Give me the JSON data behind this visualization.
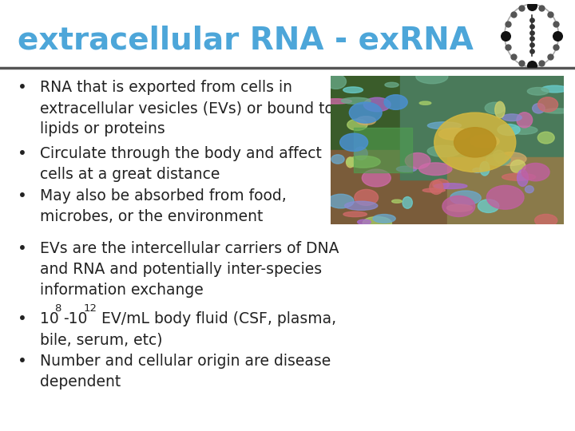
{
  "title_full": "extracellular RNA - exRNA",
  "title_color": "#4DA6D9",
  "bg_color": "#ffffff",
  "line_color": "#555555",
  "text_color": "#222222",
  "bullet1_lines": [
    "RNA that is exported from cells in",
    "extracellular vesicles (EVs) or bound to",
    "lipids or proteins"
  ],
  "bullet2_lines": [
    "Circulate through the body and affect",
    "cells at a great distance"
  ],
  "bullet3_lines": [
    "May also be absorbed from food,",
    "microbes, or the environment"
  ],
  "bullet4_lines": [
    "EVs are the intercellular carriers of DNA",
    "and RNA and potentially inter-species",
    "information exchange"
  ],
  "bullet5_line1": "10",
  "bullet5_exp1": "8",
  "bullet5_mid": "-10",
  "bullet5_exp2": "12",
  "bullet5_rest": " EV/mL body fluid (CSF, plasma,",
  "bullet5_line2": "bile, serum, etc)",
  "bullet6_lines": [
    "Number and cellular origin are disease",
    "dependent"
  ],
  "font_size_title": 28,
  "font_size_body": 13.5
}
